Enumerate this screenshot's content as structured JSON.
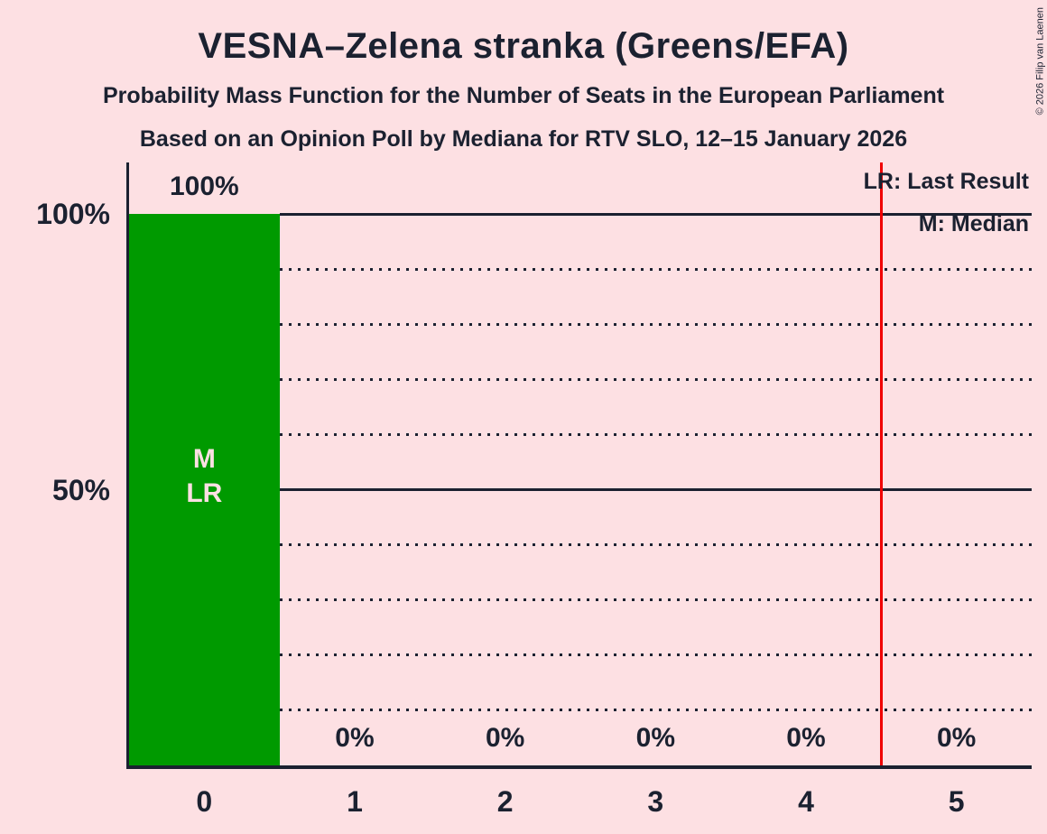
{
  "copyright": "© 2026 Filip van Laenen",
  "header": {
    "title": "VESNA–Zelena stranka (Greens/EFA)",
    "subtitle_line1": "Probability Mass Function for the Number of Seats in the European Parliament",
    "subtitle_line2": "Based on an Opinion Poll by Mediana for RTV SLO, 12–15 January 2026"
  },
  "legend": {
    "last_result": "LR: Last Result",
    "median": "M: Median",
    "position": "top-right"
  },
  "chart_data": {
    "type": "bar",
    "title": "VESNA–Zelena stranka (Greens/EFA)",
    "subtitle1": "Probability Mass Function for the Number of Seats in the European Parliament",
    "subtitle2": "Based on an Opinion Poll by Mediana for RTV SLO, 12–15 January 2026",
    "xlabel": "",
    "ylabel": "",
    "categories": [
      "0",
      "1",
      "2",
      "3",
      "4",
      "5"
    ],
    "values": [
      100,
      0,
      0,
      0,
      0,
      0
    ],
    "value_labels": [
      "100%",
      "0%",
      "0%",
      "0%",
      "0%",
      "0%"
    ],
    "bar_annotations": [
      [
        "M",
        "LR"
      ],
      [],
      [],
      [],
      [],
      []
    ],
    "median_seats": 0,
    "last_result_seats": 0,
    "majority_line_seats": 4.5,
    "ylim": [
      0,
      100
    ],
    "yaxis_ticks": [
      {
        "value": 100,
        "label": "100%"
      },
      {
        "value": 50,
        "label": "50%"
      }
    ],
    "solid_gridlines": [
      50,
      100
    ],
    "dotted_gridlines": [
      10,
      20,
      30,
      40,
      60,
      70,
      80,
      90
    ],
    "grid": true,
    "legend_position": "top-right",
    "colors": {
      "background": "#FDE0E3",
      "text": "#1B2130",
      "bar": "#009A00",
      "bar_text": "#FDE0E3",
      "majority_line": "#F00000"
    }
  }
}
